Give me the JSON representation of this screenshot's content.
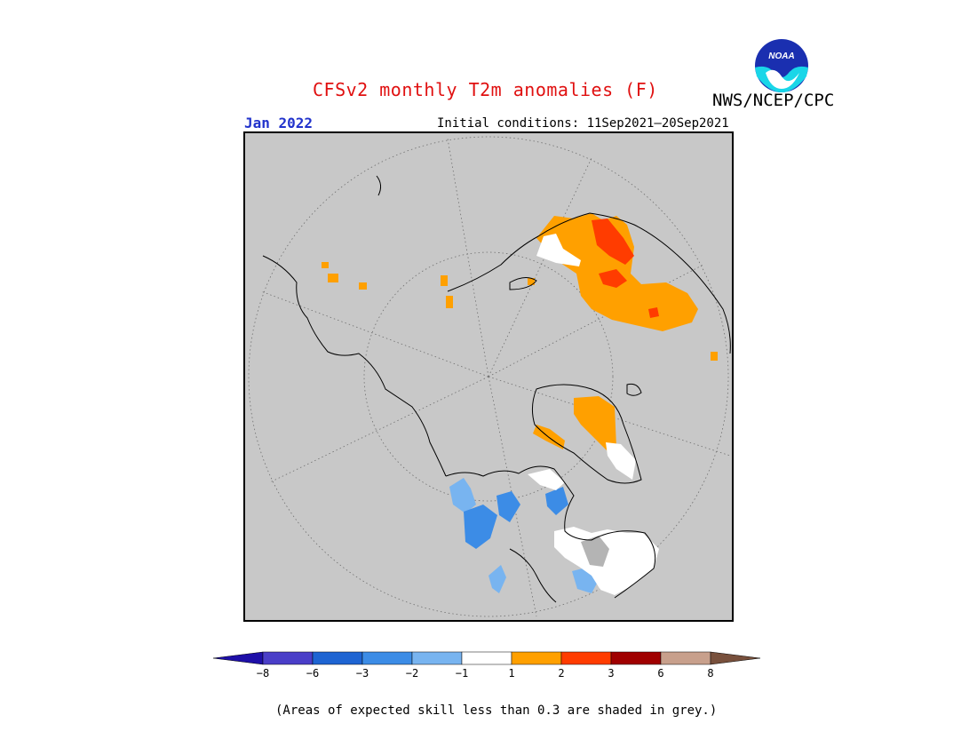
{
  "header": {
    "title": "CFSv2 monthly T2m anomalies (F)",
    "agency": "NWS/NCEP/CPC",
    "logo_text": "NOAA",
    "month": "Jan 2022",
    "initial_conditions": "Initial conditions: 11Sep2021—20Sep2021"
  },
  "map": {
    "projection": "polar stereographic (north pole)",
    "land_color": "#c8c8c8",
    "outline_color": "#000000",
    "grid_style": "dotted"
  },
  "legend": {
    "type": "colorbar",
    "tick_labels": [
      "−8",
      "−6",
      "−3",
      "−2",
      "−1",
      "1",
      "2",
      "3",
      "6",
      "8"
    ],
    "bins": [
      {
        "range": "< -8",
        "color": "#1e0fa8"
      },
      {
        "range": "-8 to -6",
        "color": "#4a3ec8"
      },
      {
        "range": "-6 to -3",
        "color": "#1e64d2"
      },
      {
        "range": "-3 to -2",
        "color": "#3c8ce6"
      },
      {
        "range": "-2 to -1",
        "color": "#78b4f0"
      },
      {
        "range": "-1 to 1",
        "color": "#ffffff"
      },
      {
        "range": "1 to 2",
        "color": "#ffa000"
      },
      {
        "range": "2 to 3",
        "color": "#ff3c00"
      },
      {
        "range": "3 to 6",
        "color": "#a00000"
      },
      {
        "range": "6 to 8",
        "color": "#c8a08c"
      },
      {
        "range": "> 8",
        "color": "#78503c"
      }
    ]
  },
  "footnote": "(Areas of expected skill less than 0.3 are shaded in grey.)"
}
